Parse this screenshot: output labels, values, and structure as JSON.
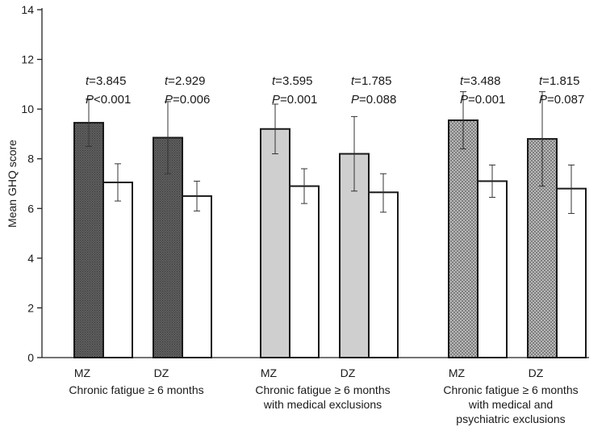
{
  "chart_data": {
    "type": "bar",
    "ylabel": "Mean GHQ score",
    "ylim": [
      0,
      14
    ],
    "yticks": [
      0,
      2,
      4,
      6,
      8,
      10,
      12,
      14
    ],
    "grid": false,
    "colors": {
      "group1": "#5a5a5a",
      "group2": "#cfcfcf",
      "group3": "#9a9a9a",
      "comparison": "#ffffff"
    },
    "groups": [
      {
        "label_lines": [
          "Chronic fatigue ≥ 6 months"
        ],
        "pairs": [
          {
            "zygosity": "MZ",
            "affected": 9.45,
            "affected_err": [
              8.5,
              10.4
            ],
            "comparison": 7.05,
            "comparison_err": [
              6.3,
              7.8
            ],
            "t_value": "3.845",
            "p_value": "<0.001"
          },
          {
            "zygosity": "DZ",
            "affected": 8.85,
            "affected_err": [
              7.4,
              10.3
            ],
            "comparison": 6.5,
            "comparison_err": [
              5.9,
              7.1
            ],
            "t_value": "2.929",
            "p_value": "=0.006"
          }
        ]
      },
      {
        "label_lines": [
          "Chronic fatigue ≥ 6 months",
          "with medical exclusions"
        ],
        "pairs": [
          {
            "zygosity": "MZ",
            "affected": 9.2,
            "affected_err": [
              8.2,
              10.2
            ],
            "comparison": 6.9,
            "comparison_err": [
              6.2,
              7.6
            ],
            "t_value": "3.595",
            "p_value": "=0.001"
          },
          {
            "zygosity": "DZ",
            "affected": 8.2,
            "affected_err": [
              6.7,
              9.7
            ],
            "comparison": 6.65,
            "comparison_err": [
              5.85,
              7.4
            ],
            "t_value": "1.785",
            "p_value": "=0.088"
          }
        ]
      },
      {
        "label_lines": [
          "Chronic fatigue ≥ 6 months",
          "with medical and",
          "psychiatric exclusions"
        ],
        "pairs": [
          {
            "zygosity": "MZ",
            "affected": 9.55,
            "affected_err": [
              8.4,
              10.7
            ],
            "comparison": 7.1,
            "comparison_err": [
              6.45,
              7.75
            ],
            "t_value": "3.488",
            "p_value": "=0.001"
          },
          {
            "zygosity": "DZ",
            "affected": 8.8,
            "affected_err": [
              6.9,
              10.7
            ],
            "comparison": 6.8,
            "comparison_err": [
              5.8,
              7.75
            ],
            "t_value": "1.815",
            "p_value": "=0.087"
          }
        ]
      }
    ]
  }
}
